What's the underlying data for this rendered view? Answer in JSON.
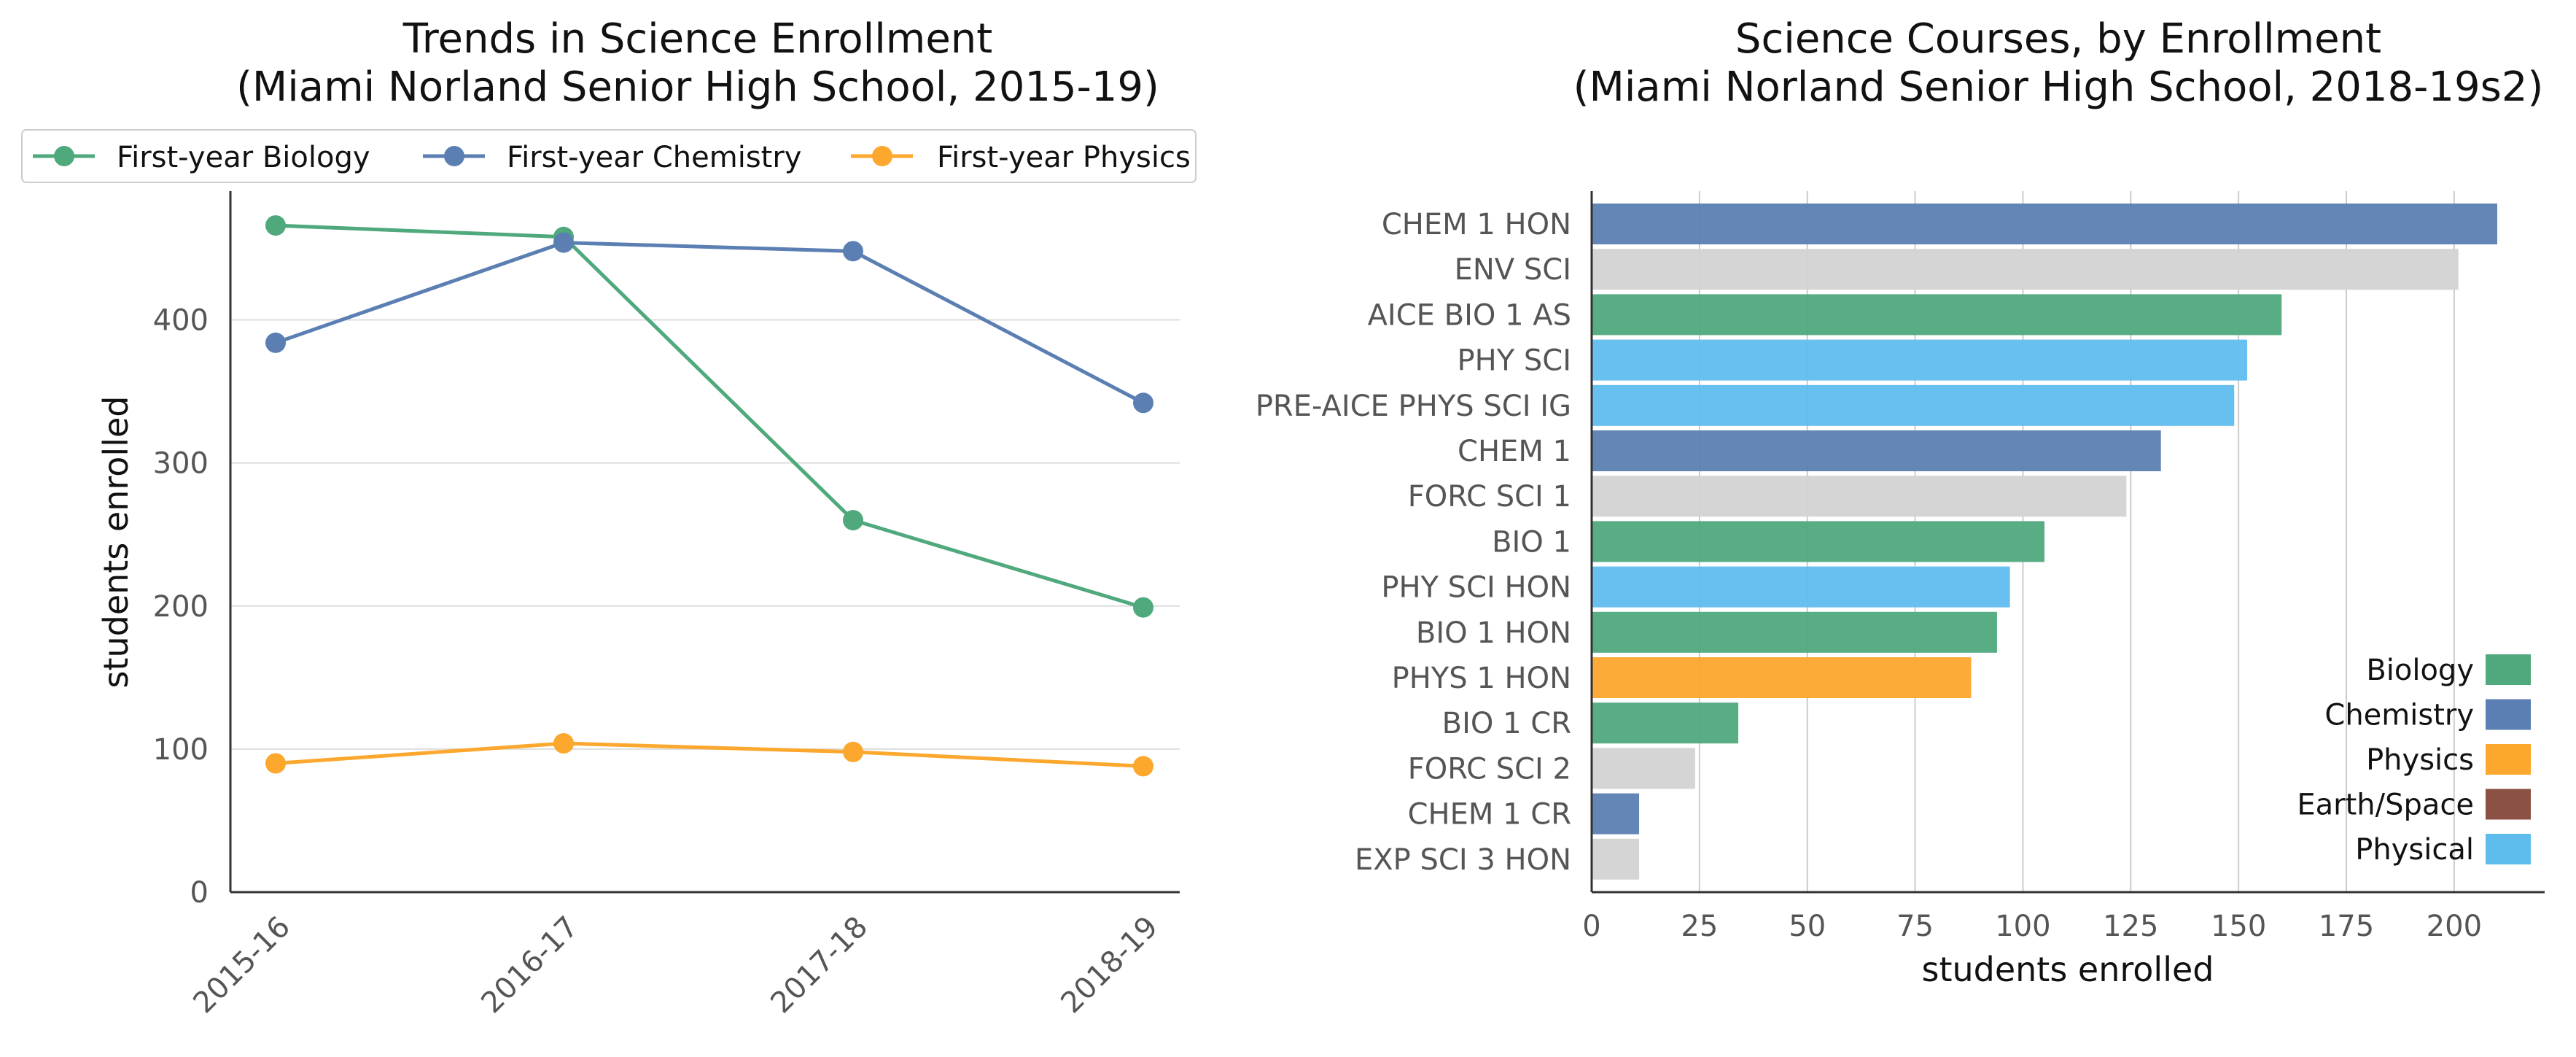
{
  "chart_data": [
    {
      "type": "line",
      "title": "Trends in Science Enrollment",
      "subtitle": "(Miami Norland Senior High School, 2015-19)",
      "xlabel": "",
      "ylabel": "students enrolled",
      "categories": [
        "2015-16",
        "2016-17",
        "2017-18",
        "2018-19"
      ],
      "ylim": [
        0,
        490
      ],
      "yticks": [
        0,
        100,
        200,
        300,
        400
      ],
      "grid": "horizontal",
      "legend_position": "top",
      "series": [
        {
          "name": "First-year Biology",
          "color": "#4fa97d",
          "values": [
            466,
            458,
            260,
            199
          ]
        },
        {
          "name": "First-year Chemistry",
          "color": "#5b7fb2",
          "values": [
            384,
            454,
            448,
            342
          ]
        },
        {
          "name": "First-year Physics",
          "color": "#fca72d",
          "values": [
            90,
            104,
            98,
            88
          ]
        }
      ]
    },
    {
      "type": "bar",
      "orientation": "horizontal",
      "title": "Science Courses, by Enrollment",
      "subtitle": "(Miami Norland Senior High School, 2018-19s2)",
      "xlabel": "students enrolled",
      "ylabel": "",
      "xlim": [
        0,
        220
      ],
      "xticks": [
        0,
        25,
        50,
        75,
        100,
        125,
        150,
        175,
        200
      ],
      "grid": "vertical",
      "legend_position": "bottom-right",
      "categories": [
        "CHEM 1 HON",
        "ENV SCI",
        "AICE BIO 1 AS",
        "PHY SCI",
        "PRE-AICE PHYS SCI IG",
        "CHEM 1",
        "FORC SCI 1",
        "BIO 1",
        "PHY SCI HON",
        "BIO 1 HON",
        "PHYS 1 HON",
        "BIO 1 CR",
        "FORC SCI 2",
        "CHEM 1 CR",
        "EXP SCI 3 HON"
      ],
      "values": [
        210,
        201,
        160,
        152,
        149,
        132,
        124,
        105,
        97,
        94,
        88,
        34,
        24,
        11,
        11
      ],
      "bar_groups": [
        "Chemistry",
        "Other",
        "Biology",
        "Physical",
        "Physical",
        "Chemistry",
        "Other",
        "Biology",
        "Physical",
        "Biology",
        "Physics",
        "Biology",
        "Other",
        "Chemistry",
        "Other"
      ],
      "group_colors": {
        "Biology": "#4fa97d",
        "Chemistry": "#5b7fb2",
        "Physics": "#fca72d",
        "Earth/Space": "#8b5142",
        "Physical": "#5fbdee",
        "Other": "#d3d3d3"
      },
      "legend": [
        "Biology",
        "Chemistry",
        "Physics",
        "Earth/Space",
        "Physical"
      ]
    }
  ]
}
